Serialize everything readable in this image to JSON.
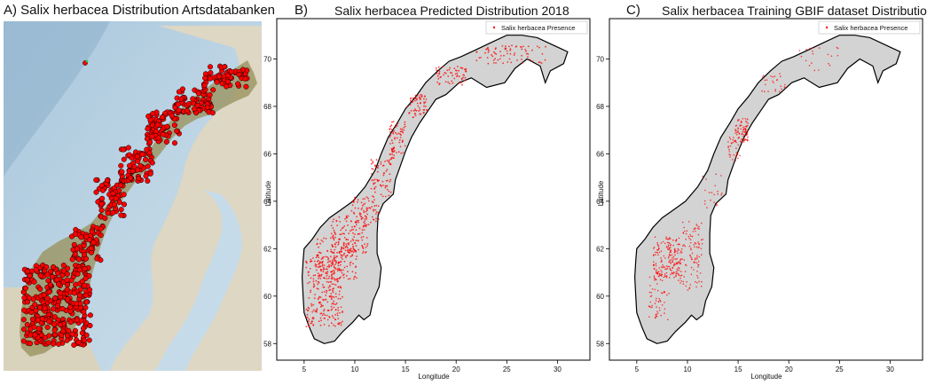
{
  "panels": [
    {
      "id": "A",
      "label": "A)",
      "title": "Salix herbacea Distribution Artsdatabanken"
    },
    {
      "id": "B",
      "label": "B)",
      "title": "Salix herbacea Predicted Distribution 2018",
      "legend": "Salix herbacea Presence",
      "xlabel": "Longitude",
      "ylabel": "Latitude",
      "xticks": [
        "5",
        "10",
        "15",
        "20",
        "25",
        "30"
      ],
      "yticks": [
        "58",
        "60",
        "62",
        "64",
        "66",
        "68",
        "70"
      ]
    },
    {
      "id": "C",
      "label": "C)",
      "title": "Salix herbacea Training GBIF dataset Distribution",
      "legend": "Salix herbacea Presence",
      "xlabel": "Longitude",
      "ylabel": "Latitude",
      "xticks": [
        "5",
        "10",
        "15",
        "20",
        "25",
        "30"
      ],
      "yticks": [
        "58",
        "60",
        "62",
        "64",
        "66",
        "68",
        "70"
      ]
    }
  ],
  "colors": {
    "presence": "#ff0000",
    "land": "#d3d3d3",
    "coast": "#000000"
  },
  "chart_data": [
    {
      "type": "scatter",
      "title": "Salix herbacea Predicted Distribution 2018",
      "xlabel": "Longitude",
      "ylabel": "Latitude",
      "xlim": [
        2.3,
        33.2
      ],
      "ylim": [
        57.3,
        71.7
      ],
      "series": [
        {
          "name": "Salix herbacea Presence",
          "distribution": "dense across southern and western Norway, continuing along the northwest coast to Finnmark"
        }
      ]
    },
    {
      "type": "scatter",
      "title": "Salix herbacea Training GBIF dataset Distribution",
      "xlabel": "Longitude",
      "ylabel": "Latitude",
      "xlim": [
        2.3,
        33.2
      ],
      "ylim": [
        57.3,
        71.7
      ],
      "series": [
        {
          "name": "Salix herbacea Presence",
          "distribution": "concentrated in south-central Norway mountains and around latitude 66-67 on the Nordland coast"
        }
      ]
    }
  ]
}
